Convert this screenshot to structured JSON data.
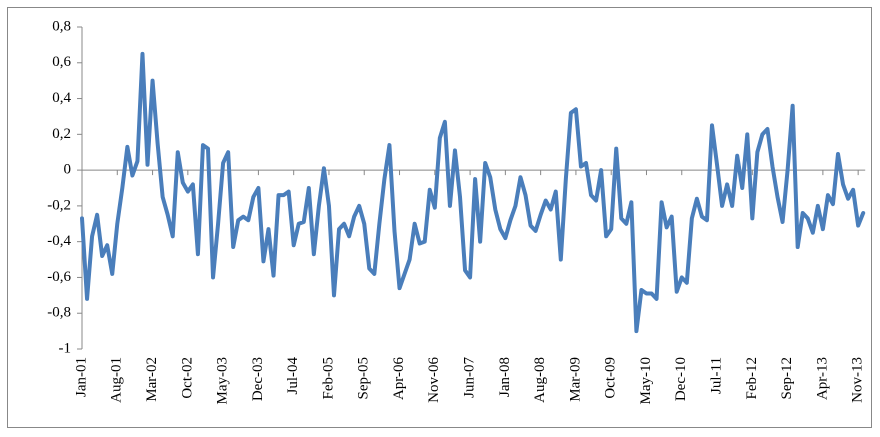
{
  "chart_data": {
    "type": "line",
    "categories": [
      "Jan-01",
      null,
      null,
      null,
      null,
      null,
      null,
      "Aug-01",
      null,
      null,
      null,
      null,
      null,
      null,
      "Mar-02",
      null,
      null,
      null,
      null,
      null,
      null,
      "Oct-02",
      null,
      null,
      null,
      null,
      null,
      null,
      "May-03",
      null,
      null,
      null,
      null,
      null,
      null,
      "Dec-03",
      null,
      null,
      null,
      null,
      null,
      null,
      "Jul-04",
      null,
      null,
      null,
      null,
      null,
      null,
      "Feb-05",
      null,
      null,
      null,
      null,
      null,
      null,
      "Sep-05",
      null,
      null,
      null,
      null,
      null,
      null,
      "Apr-06",
      null,
      null,
      null,
      null,
      null,
      null,
      "Nov-06",
      null,
      null,
      null,
      null,
      null,
      null,
      "Jun-07",
      null,
      null,
      null,
      null,
      null,
      null,
      "Jan-08",
      null,
      null,
      null,
      null,
      null,
      null,
      "Aug-08",
      null,
      null,
      null,
      null,
      null,
      null,
      "Mar-09",
      null,
      null,
      null,
      null,
      null,
      null,
      "Oct-09",
      null,
      null,
      null,
      null,
      null,
      null,
      "May-10",
      null,
      null,
      null,
      null,
      null,
      null,
      "Dec-10",
      null,
      null,
      null,
      null,
      null,
      null,
      "Jul-11",
      null,
      null,
      null,
      null,
      null,
      null,
      "Feb-12",
      null,
      null,
      null,
      null,
      null,
      null,
      "Sep-12",
      null,
      null,
      null,
      null,
      null,
      null,
      "Apr-13",
      null,
      null,
      null,
      null,
      null,
      null,
      "Nov-13",
      null
    ],
    "values": [
      -0.27,
      -0.72,
      -0.37,
      -0.25,
      -0.48,
      -0.42,
      -0.58,
      -0.3,
      -0.1,
      0.13,
      -0.03,
      0.05,
      0.65,
      0.03,
      0.5,
      0.15,
      -0.15,
      -0.25,
      -0.37,
      0.1,
      -0.07,
      -0.12,
      -0.08,
      -0.47,
      0.14,
      0.12,
      -0.6,
      -0.3,
      0.04,
      0.1,
      -0.43,
      -0.28,
      -0.26,
      -0.28,
      -0.15,
      -0.1,
      -0.51,
      -0.33,
      -0.59,
      -0.14,
      -0.14,
      -0.12,
      -0.42,
      -0.3,
      -0.29,
      -0.1,
      -0.47,
      -0.2,
      0.01,
      -0.2,
      -0.7,
      -0.33,
      -0.3,
      -0.37,
      -0.26,
      -0.2,
      -0.3,
      -0.55,
      -0.58,
      -0.3,
      -0.05,
      0.14,
      -0.34,
      -0.66,
      -0.58,
      -0.5,
      -0.3,
      -0.41,
      -0.4,
      -0.11,
      -0.21,
      0.18,
      0.27,
      -0.2,
      0.11,
      -0.15,
      -0.56,
      -0.6,
      -0.05,
      -0.4,
      0.04,
      -0.04,
      -0.22,
      -0.33,
      -0.38,
      -0.28,
      -0.2,
      -0.04,
      -0.14,
      -0.31,
      -0.34,
      -0.25,
      -0.17,
      -0.22,
      -0.12,
      -0.5,
      -0.05,
      0.32,
      0.34,
      0.02,
      0.04,
      -0.14,
      -0.17,
      0.0,
      -0.37,
      -0.33,
      0.12,
      -0.27,
      -0.3,
      -0.18,
      -0.9,
      -0.67,
      -0.69,
      -0.69,
      -0.72,
      -0.18,
      -0.32,
      -0.26,
      -0.68,
      -0.6,
      -0.63,
      -0.27,
      -0.16,
      -0.26,
      -0.28,
      0.25,
      0.03,
      -0.2,
      -0.08,
      -0.2,
      0.08,
      -0.1,
      0.2,
      -0.27,
      0.1,
      0.2,
      0.23,
      0.02,
      -0.15,
      -0.29,
      0.0,
      0.36,
      -0.43,
      -0.24,
      -0.27,
      -0.35,
      -0.2,
      -0.33,
      -0.14,
      -0.19,
      0.09,
      -0.08,
      -0.16,
      -0.11,
      -0.31,
      -0.24
    ],
    "color": "#4a7ebb",
    "ylim": [
      -1,
      0.8
    ],
    "yticks": [
      {
        "value": -1,
        "label": "-1"
      },
      {
        "value": -0.8,
        "label": "-0,8"
      },
      {
        "value": -0.6,
        "label": "-0,6"
      },
      {
        "value": -0.4,
        "label": "-0,4"
      },
      {
        "value": -0.2,
        "label": "-0,2"
      },
      {
        "value": 0,
        "label": "0"
      },
      {
        "value": 0.2,
        "label": "0,2"
      },
      {
        "value": 0.4,
        "label": "0,4"
      },
      {
        "value": 0.6,
        "label": "0,6"
      },
      {
        "value": 0.8,
        "label": "0,8"
      }
    ]
  }
}
